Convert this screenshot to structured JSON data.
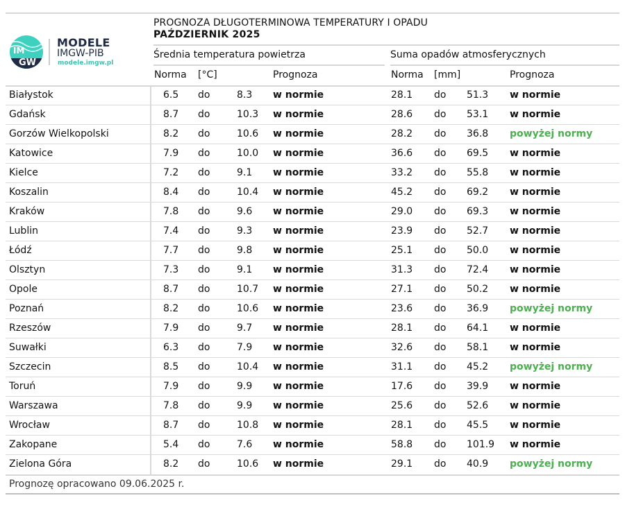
{
  "logo": {
    "brand": "MODELE",
    "org": "IMGW-PIB",
    "url": "modele.imgw.pl",
    "mark_text": "IMGW"
  },
  "title": "PROGNOZA DŁUGOTERMINOWA TEMPERATURY I OPADU",
  "subtitle": "PAŹDZIERNIK 2025",
  "groups": {
    "temperature": "Średnia temperatura powietrza",
    "precip": "Suma opadów atmosferycznych"
  },
  "columns": {
    "temp_norma": "Norma",
    "temp_unit": "[°C]",
    "temp_prognoza": "Prognoza",
    "precip_norma": "Norma",
    "precip_unit": "[mm]",
    "precip_prognoza": "Prognoza"
  },
  "colors": {
    "normal": "#111111",
    "above": "#4caf50"
  },
  "rows": [
    {
      "city": "Białystok",
      "t_from": "6.5",
      "t_do": "do",
      "t_to": "8.3",
      "t_fc": "w normie",
      "p_from": "28.1",
      "p_do": "do",
      "p_to": "51.3",
      "p_fc": "w normie",
      "p_status": "normal"
    },
    {
      "city": "Gdańsk",
      "t_from": "8.7",
      "t_do": "do",
      "t_to": "10.3",
      "t_fc": "w normie",
      "p_from": "28.6",
      "p_do": "do",
      "p_to": "53.1",
      "p_fc": "w normie",
      "p_status": "normal"
    },
    {
      "city": "Gorzów Wielkopolski",
      "t_from": "8.2",
      "t_do": "do",
      "t_to": "10.6",
      "t_fc": "w normie",
      "p_from": "28.2",
      "p_do": "do",
      "p_to": "36.8",
      "p_fc": "powyżej normy",
      "p_status": "above"
    },
    {
      "city": "Katowice",
      "t_from": "7.9",
      "t_do": "do",
      "t_to": "10.0",
      "t_fc": "w normie",
      "p_from": "36.6",
      "p_do": "do",
      "p_to": "69.5",
      "p_fc": "w normie",
      "p_status": "normal"
    },
    {
      "city": "Kielce",
      "t_from": "7.2",
      "t_do": "do",
      "t_to": "9.1",
      "t_fc": "w normie",
      "p_from": "33.2",
      "p_do": "do",
      "p_to": "55.8",
      "p_fc": "w normie",
      "p_status": "normal"
    },
    {
      "city": "Koszalin",
      "t_from": "8.4",
      "t_do": "do",
      "t_to": "10.4",
      "t_fc": "w normie",
      "p_from": "45.2",
      "p_do": "do",
      "p_to": "69.2",
      "p_fc": "w normie",
      "p_status": "normal"
    },
    {
      "city": "Kraków",
      "t_from": "7.8",
      "t_do": "do",
      "t_to": "9.6",
      "t_fc": "w normie",
      "p_from": "29.0",
      "p_do": "do",
      "p_to": "69.3",
      "p_fc": "w normie",
      "p_status": "normal"
    },
    {
      "city": "Lublin",
      "t_from": "7.4",
      "t_do": "do",
      "t_to": "9.3",
      "t_fc": "w normie",
      "p_from": "23.9",
      "p_do": "do",
      "p_to": "52.7",
      "p_fc": "w normie",
      "p_status": "normal"
    },
    {
      "city": "Łódź",
      "t_from": "7.7",
      "t_do": "do",
      "t_to": "9.8",
      "t_fc": "w normie",
      "p_from": "25.1",
      "p_do": "do",
      "p_to": "50.0",
      "p_fc": "w normie",
      "p_status": "normal"
    },
    {
      "city": "Olsztyn",
      "t_from": "7.3",
      "t_do": "do",
      "t_to": "9.1",
      "t_fc": "w normie",
      "p_from": "31.3",
      "p_do": "do",
      "p_to": "72.4",
      "p_fc": "w normie",
      "p_status": "normal"
    },
    {
      "city": "Opole",
      "t_from": "8.7",
      "t_do": "do",
      "t_to": "10.7",
      "t_fc": "w normie",
      "p_from": "27.1",
      "p_do": "do",
      "p_to": "50.2",
      "p_fc": "w normie",
      "p_status": "normal"
    },
    {
      "city": "Poznań",
      "t_from": "8.2",
      "t_do": "do",
      "t_to": "10.6",
      "t_fc": "w normie",
      "p_from": "23.6",
      "p_do": "do",
      "p_to": "36.9",
      "p_fc": "powyżej normy",
      "p_status": "above"
    },
    {
      "city": "Rzeszów",
      "t_from": "7.9",
      "t_do": "do",
      "t_to": "9.7",
      "t_fc": "w normie",
      "p_from": "28.1",
      "p_do": "do",
      "p_to": "64.1",
      "p_fc": "w normie",
      "p_status": "normal"
    },
    {
      "city": "Suwałki",
      "t_from": "6.3",
      "t_do": "do",
      "t_to": "7.9",
      "t_fc": "w normie",
      "p_from": "32.6",
      "p_do": "do",
      "p_to": "58.1",
      "p_fc": "w normie",
      "p_status": "normal"
    },
    {
      "city": "Szczecin",
      "t_from": "8.5",
      "t_do": "do",
      "t_to": "10.4",
      "t_fc": "w normie",
      "p_from": "31.1",
      "p_do": "do",
      "p_to": "45.2",
      "p_fc": "powyżej normy",
      "p_status": "above"
    },
    {
      "city": "Toruń",
      "t_from": "7.9",
      "t_do": "do",
      "t_to": "9.9",
      "t_fc": "w normie",
      "p_from": "17.6",
      "p_do": "do",
      "p_to": "39.9",
      "p_fc": "w normie",
      "p_status": "normal"
    },
    {
      "city": "Warszawa",
      "t_from": "7.8",
      "t_do": "do",
      "t_to": "9.9",
      "t_fc": "w normie",
      "p_from": "25.6",
      "p_do": "do",
      "p_to": "52.6",
      "p_fc": "w normie",
      "p_status": "normal"
    },
    {
      "city": "Wrocław",
      "t_from": "8.7",
      "t_do": "do",
      "t_to": "10.8",
      "t_fc": "w normie",
      "p_from": "28.1",
      "p_do": "do",
      "p_to": "45.5",
      "p_fc": "w normie",
      "p_status": "normal"
    },
    {
      "city": "Zakopane",
      "t_from": "5.4",
      "t_do": "do",
      "t_to": "7.6",
      "t_fc": "w normie",
      "p_from": "58.8",
      "p_do": "do",
      "p_to": "101.9",
      "p_fc": "w normie",
      "p_status": "normal"
    },
    {
      "city": "Zielona Góra",
      "t_from": "8.2",
      "t_do": "do",
      "t_to": "10.6",
      "t_fc": "w normie",
      "p_from": "29.1",
      "p_do": "do",
      "p_to": "40.9",
      "p_fc": "powyżej normy",
      "p_status": "above"
    }
  ],
  "footer": "Prognozę opracowano 09.06.2025 r."
}
